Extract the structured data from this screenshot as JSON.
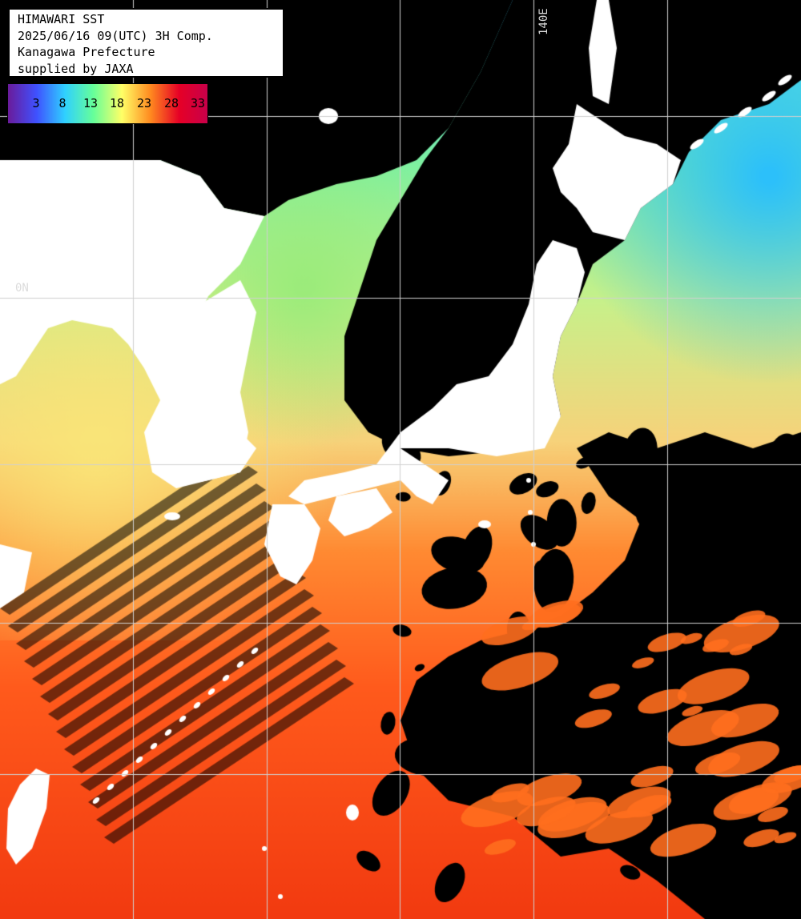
{
  "header": {
    "line1": "HIMAWARI SST",
    "line2": "2025/06/16 09(UTC) 3H Comp.",
    "line3": "Kanagawa Prefecture",
    "line4": "supplied by JAXA"
  },
  "legend": {
    "labels": [
      "3",
      "8",
      "13",
      "18",
      "23",
      "28",
      "33"
    ],
    "gradient": [
      "#6a1b9a",
      "#3f51ff",
      "#2fd0ff",
      "#66ff99",
      "#ffff66",
      "#ff8a1f",
      "#e60026",
      "#c8004a"
    ]
  },
  "grid": {
    "lon_label": "140E",
    "lat_label": "0N"
  },
  "colors": {
    "land": "#ffffff",
    "cloud": "#000000",
    "grid": "#d0d0d0"
  }
}
